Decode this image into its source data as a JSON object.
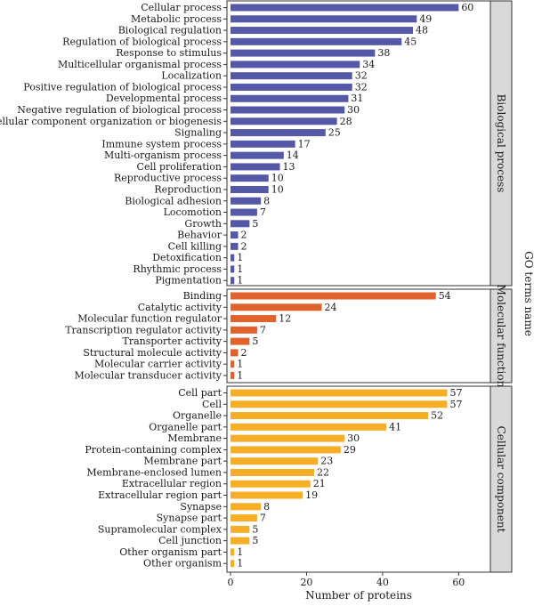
{
  "chart_data": {
    "type": "bar",
    "orientation": "horizontal",
    "xlabel": "Number of proteins",
    "ylabel": "GO terms name",
    "xlim": [
      0,
      70
    ],
    "xticks": [
      0,
      20,
      40,
      60
    ],
    "grid": false,
    "panels": [
      {
        "name": "Biological process",
        "color": "#5558a6",
        "categories": [
          "Cellular process",
          "Metabolic process",
          "Biological regulation",
          "Regulation of biological process",
          "Response to stimulus",
          "Multicellular organismal process",
          "Localization",
          "Positive regulation of biological process",
          "Developmental process",
          "Negative regulation of biological process",
          "Cellular component organization or biogenesis",
          "Signaling",
          "Immune system process",
          "Multi-organism process",
          "Cell proliferation",
          "Reproductive process",
          "Reproduction",
          "Biological adhesion",
          "Locomotion",
          "Growth",
          "Behavior",
          "Cell killing",
          "Detoxification",
          "Rhythmic process",
          "Pigmentation"
        ],
        "values": [
          60,
          49,
          48,
          45,
          38,
          34,
          32,
          32,
          31,
          30,
          28,
          25,
          17,
          14,
          13,
          10,
          10,
          8,
          7,
          5,
          2,
          2,
          1,
          1,
          1
        ]
      },
      {
        "name": "Molecular function",
        "color": "#e0622d",
        "categories": [
          "Binding",
          "Catalytic activity",
          "Molecular function regulator",
          "Transcription regulator activity",
          "Transporter activity",
          "Structural molecule activity",
          "Molecular carrier activity",
          "Molecular transducer activity"
        ],
        "values": [
          54,
          24,
          12,
          7,
          5,
          2,
          1,
          1
        ]
      },
      {
        "name": "Cellular component",
        "color": "#f5ae25",
        "categories": [
          "Cell part",
          "Cell",
          "Organelle",
          "Organelle part",
          "Membrane",
          "Protein-containing complex",
          "Membrane part",
          "Membrane-enclosed lumen",
          "Extracellular region",
          "Extracellular region part",
          "Synapse",
          "Synapse part",
          "Supramolecular complex",
          "Cell junction",
          "Other organism part",
          "Other organism"
        ],
        "values": [
          57,
          57,
          52,
          41,
          30,
          29,
          23,
          22,
          21,
          19,
          8,
          7,
          5,
          5,
          1,
          1
        ]
      }
    ]
  }
}
